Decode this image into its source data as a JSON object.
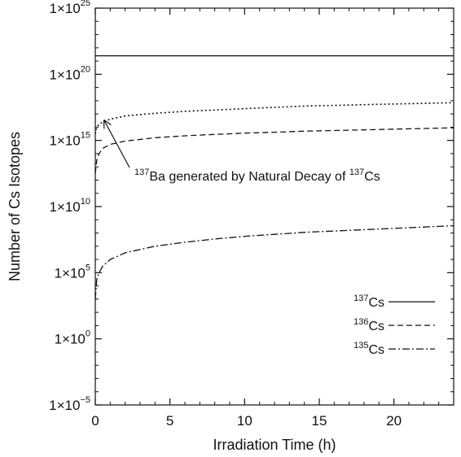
{
  "chart_data": {
    "type": "line",
    "xlabel": "Irradiation Time (h)",
    "ylabel": "Number of Cs Isotopes",
    "x_scale": "linear",
    "y_scale": "log",
    "xlim": [
      0,
      24
    ],
    "ylim": [
      -5,
      25
    ],
    "x_ticks": [
      {
        "value": 0,
        "label": "0"
      },
      {
        "value": 5,
        "label": "5"
      },
      {
        "value": 10,
        "label": "10"
      },
      {
        "value": 15,
        "label": "15"
      },
      {
        "value": 20,
        "label": "20"
      }
    ],
    "y_ticks": [
      {
        "exp": -5,
        "base": "1×10",
        "power": "−5"
      },
      {
        "exp": 0,
        "base": "1×10",
        "power": "0"
      },
      {
        "exp": 5,
        "base": "1×10",
        "power": "5"
      },
      {
        "exp": 10,
        "base": "1×10",
        "power": "10"
      },
      {
        "exp": 15,
        "base": "1×10",
        "power": "15"
      },
      {
        "exp": 20,
        "base": "1×10",
        "power": "20"
      },
      {
        "exp": 25,
        "base": "1×10",
        "power": "25"
      }
    ],
    "grid": false,
    "legend_position": "bottom-right",
    "series": [
      {
        "name_sup": "137",
        "name_base": "Cs",
        "style": "solid",
        "x": [
          0,
          24
        ],
        "log10_y": [
          21.4,
          21.4
        ]
      },
      {
        "name_sup": "136",
        "name_base": "Cs",
        "style": "dashed",
        "x": [
          0,
          0.1,
          0.25,
          0.5,
          1,
          2,
          4,
          6,
          8,
          10,
          12,
          14,
          16,
          18,
          20,
          22,
          24
        ],
        "log10_y": [
          12.5,
          13.5,
          14.0,
          14.4,
          14.7,
          14.95,
          15.2,
          15.35,
          15.45,
          15.55,
          15.62,
          15.7,
          15.75,
          15.8,
          15.85,
          15.9,
          15.95
        ]
      },
      {
        "name_sup": "135",
        "name_base": "Cs",
        "style": "dashdot",
        "x": [
          0,
          0.1,
          0.25,
          0.5,
          1,
          2,
          4,
          6,
          8,
          10,
          12,
          14,
          16,
          18,
          20,
          22,
          24
        ],
        "log10_y": [
          3.0,
          4.5,
          5.0,
          5.5,
          6.0,
          6.5,
          7.0,
          7.3,
          7.55,
          7.75,
          7.9,
          8.05,
          8.15,
          8.25,
          8.35,
          8.45,
          8.55
        ]
      },
      {
        "style": "dotted",
        "x": [
          0,
          0.1,
          0.25,
          0.5,
          1,
          2,
          4,
          6,
          8,
          10,
          12,
          14,
          16,
          18,
          20,
          22,
          24
        ],
        "log10_y": [
          15.5,
          16.0,
          16.2,
          16.4,
          16.6,
          16.85,
          17.05,
          17.2,
          17.3,
          17.4,
          17.5,
          17.6,
          17.65,
          17.7,
          17.75,
          17.8,
          17.85
        ]
      }
    ],
    "annotation": {
      "parts": [
        {
          "text": "137",
          "sup": true
        },
        {
          "text": "Ba generated by Natural Decay of ",
          "sup": false
        },
        {
          "text": "137",
          "sup": true
        },
        {
          "text": "Cs",
          "sup": false
        }
      ],
      "arrow_to": {
        "x": 0.6,
        "log10_y": 16.5
      }
    }
  }
}
